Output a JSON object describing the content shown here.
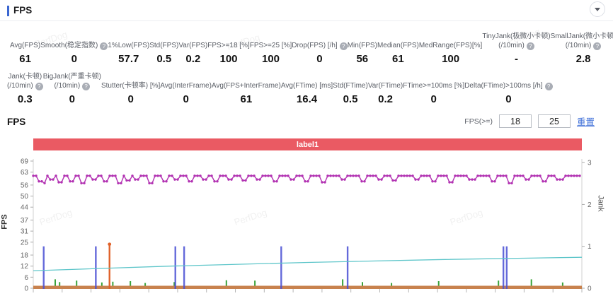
{
  "header": {
    "title": "FPS"
  },
  "watermark": {
    "text": "PerfDog"
  },
  "stats_row1": [
    {
      "label": "Avg(FPS)",
      "value": "61",
      "help": false
    },
    {
      "label": "Smooth(稳定指数)",
      "value": "0",
      "help": true
    },
    {
      "label": "1%Low(FPS)",
      "value": "57.7",
      "help": false
    },
    {
      "label": "Std(FPS)",
      "value": "0.5",
      "help": false
    },
    {
      "label": "Var(FPS)",
      "value": "0.2",
      "help": false
    },
    {
      "label": "FPS>=18 [%]",
      "value": "100",
      "help": false
    },
    {
      "label": "FPS>=25 [%]",
      "value": "100",
      "help": false
    },
    {
      "label": "Drop(FPS) [/h]",
      "value": "0",
      "help": true
    },
    {
      "label": "Min(FPS)",
      "value": "56",
      "help": false
    },
    {
      "label": "Median(FPS)",
      "value": "61",
      "help": false
    },
    {
      "label": "MedRange(FPS)[%]",
      "value": "100",
      "help": false
    },
    {
      "label": "TinyJank(极微小卡顿)",
      "label2": "(/10min)",
      "value": "-",
      "help": true
    },
    {
      "label": "SmallJank(微小卡顿)",
      "label2": "(/10min)",
      "value": "2.8",
      "help": true
    }
  ],
  "stats_row2": [
    {
      "label": "Jank(卡顿)",
      "label2": "(/10min)",
      "value": "0.3",
      "help": true
    },
    {
      "label": "BigJank(严重卡顿)",
      "label2": "(/10min)",
      "value": "0",
      "help": true
    },
    {
      "label": "Stutter(卡顿率) [%]",
      "value": "0",
      "help": false
    },
    {
      "label": "Avg(InterFrame)",
      "value": "0",
      "help": false
    },
    {
      "label": "Avg(FPS+InterFrame)",
      "value": "61",
      "help": false
    },
    {
      "label": "Avg(FTime) [ms]",
      "value": "16.4",
      "help": false
    },
    {
      "label": "Std(FTime)",
      "value": "0.5",
      "help": false
    },
    {
      "label": "Var(FTime)",
      "value": "0.2",
      "help": false
    },
    {
      "label": "FTime>=100ms [%]",
      "value": "0",
      "help": false
    },
    {
      "label": "Delta(FTime)>100ms [/h]",
      "value": "0",
      "help": true
    }
  ],
  "section": {
    "title": "FPS",
    "threshold_label": "FPS(>=)",
    "threshold1": "18",
    "threshold2": "25",
    "reset_label": "重置"
  },
  "chart_data": {
    "type": "line",
    "banner": "label1",
    "y_left": {
      "label": "FPS",
      "ticks": [
        69,
        63,
        56,
        50,
        44,
        37,
        31,
        25,
        18,
        12,
        6,
        0
      ],
      "range": [
        0,
        69
      ]
    },
    "y_right": {
      "label": "Jank",
      "ticks": [
        3,
        2,
        1,
        0
      ],
      "range": [
        0,
        3
      ]
    },
    "x_axis": {
      "tick_count": 20,
      "labels_visible": false
    },
    "series": [
      {
        "name": "fps",
        "color": "#b232b2",
        "axis": "left",
        "style": "line-markers",
        "baseline": 61,
        "dips": [
          [
            0.012,
            58
          ],
          [
            0.02,
            57
          ],
          [
            0.033,
            59
          ],
          [
            0.05,
            57.5
          ],
          [
            0.068,
            58
          ],
          [
            0.09,
            57
          ],
          [
            0.11,
            59
          ],
          [
            0.13,
            58
          ],
          [
            0.155,
            57
          ],
          [
            0.175,
            58.5
          ],
          [
            0.19,
            59
          ],
          [
            0.215,
            57
          ],
          [
            0.24,
            58
          ],
          [
            0.26,
            59
          ],
          [
            0.285,
            58
          ],
          [
            0.31,
            59
          ],
          [
            0.335,
            58
          ],
          [
            0.36,
            59
          ],
          [
            0.385,
            58.5
          ],
          [
            0.41,
            59
          ],
          [
            0.44,
            58
          ],
          [
            0.47,
            59
          ],
          [
            0.5,
            58
          ],
          [
            0.53,
            57.5
          ],
          [
            0.565,
            59
          ],
          [
            0.6,
            58
          ],
          [
            0.63,
            59
          ],
          [
            0.66,
            58.5
          ],
          [
            0.7,
            59
          ],
          [
            0.73,
            58
          ],
          [
            0.76,
            57.5
          ],
          [
            0.8,
            59
          ],
          [
            0.84,
            58
          ],
          [
            0.87,
            57
          ],
          [
            0.9,
            59
          ],
          [
            0.93,
            58
          ],
          [
            0.96,
            59
          ]
        ]
      },
      {
        "name": "trend",
        "color": "#5fc6ca",
        "axis": "left",
        "style": "line",
        "points": [
          [
            0,
            9.5
          ],
          [
            0.25,
            12
          ],
          [
            0.5,
            14
          ],
          [
            0.75,
            15.6
          ],
          [
            1,
            16.8
          ]
        ]
      },
      {
        "name": "jank-events",
        "color": "#4a4fd4",
        "axis": "right",
        "style": "vline",
        "events": [
          [
            0.019,
            1
          ],
          [
            0.114,
            1
          ],
          [
            0.259,
            1
          ],
          [
            0.275,
            1
          ],
          [
            0.452,
            1
          ],
          [
            0.573,
            1
          ],
          [
            0.857,
            1
          ],
          [
            0.863,
            1
          ]
        ]
      },
      {
        "name": "bigjank-event",
        "color": "#e0622a",
        "axis": "right",
        "style": "vline-marker",
        "events": [
          [
            0.139,
            1.05
          ]
        ]
      },
      {
        "name": "minor-bars",
        "color": "#3aa33a",
        "axis": "left",
        "style": "bar",
        "events": [
          [
            0.04,
            3.5
          ],
          [
            0.048,
            2
          ],
          [
            0.079,
            2.8
          ],
          [
            0.125,
            1.8
          ],
          [
            0.145,
            2.2
          ],
          [
            0.177,
            2.5
          ],
          [
            0.204,
            1.5
          ],
          [
            0.257,
            2
          ],
          [
            0.352,
            3
          ],
          [
            0.404,
            2.8
          ],
          [
            0.564,
            3.5
          ],
          [
            0.6,
            2
          ],
          [
            0.653,
            1.5
          ],
          [
            0.739,
            2.5
          ],
          [
            0.848,
            2.8
          ],
          [
            0.908,
            3.5
          ],
          [
            0.965,
            1.8
          ]
        ]
      },
      {
        "name": "baseline-band",
        "color": "#c8824e",
        "axis": "left",
        "style": "band"
      }
    ]
  }
}
